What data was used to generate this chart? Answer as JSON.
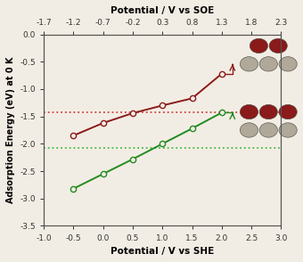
{
  "title_top": "Potential / V vs SOE",
  "xlabel": "Potential / V vs SHE",
  "ylabel": "Adsorption Energy (eV) at 0 K",
  "xlim_she": [
    -1.0,
    3.0
  ],
  "ylim": [
    -3.5,
    0.0
  ],
  "xlim_soe": [
    -1.7,
    2.3
  ],
  "she_ticks": [
    -1.0,
    -0.5,
    0.0,
    0.5,
    1.0,
    1.5,
    2.0,
    2.5,
    3.0
  ],
  "soe_ticks": [
    -1.7,
    -1.2,
    -0.7,
    -0.2,
    0.3,
    0.8,
    1.3,
    1.8,
    2.3
  ],
  "yticks": [
    0.0,
    -0.5,
    -1.0,
    -1.5,
    -2.0,
    -2.5,
    -3.0,
    -3.5
  ],
  "red_line_x": [
    -0.5,
    0.0,
    0.5,
    1.0,
    1.5,
    2.0
  ],
  "red_line_y": [
    -1.85,
    -1.62,
    -1.44,
    -1.3,
    -1.17,
    -0.72
  ],
  "red_hline_y": -1.43,
  "green_line_x": [
    -0.5,
    0.0,
    0.5,
    1.0,
    1.5,
    2.0
  ],
  "green_line_y": [
    -2.82,
    -2.55,
    -2.28,
    -2.0,
    -1.72,
    -1.43
  ],
  "green_hline_y": -2.08,
  "red_color": "#8B1A1A",
  "green_color": "#228B22",
  "red_hline_color": "#CC4444",
  "green_hline_color": "#44BB44",
  "bg_color": "#F2EDE4",
  "gray_atom": "#B0A898",
  "dark_red_atom": "#8B1A1A"
}
